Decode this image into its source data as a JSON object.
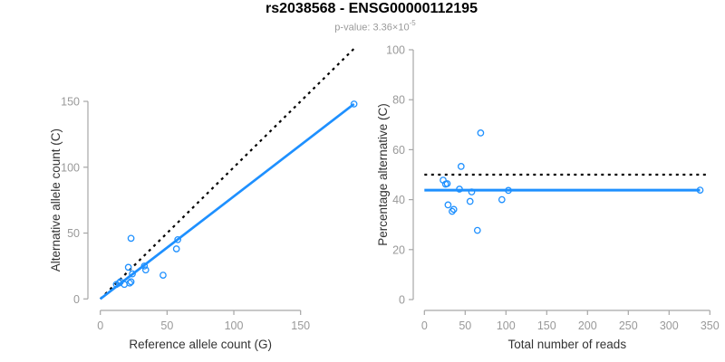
{
  "header": {
    "title": "rs2038568 - ENSG00000112195",
    "pvalue_text": "p-value: 3.36×10",
    "pvalue_exponent": "-5"
  },
  "colors": {
    "point_blue": "#1E90FF",
    "fit_line_blue": "#1E90FF",
    "dashed_black": "#000000",
    "tick_text_gray": "#999999",
    "axis_gray": "#A6A6A6",
    "axis_title_color": "#333333",
    "title_color": "#000000",
    "subtitle_gray": "#9A9A9A",
    "background": "#FFFFFF"
  },
  "chart_data": [
    {
      "type": "scatter",
      "panel": "left",
      "title": "",
      "xlabel": "Reference allele count (G)",
      "ylabel": "Alternative allele count (C)",
      "xticks": [
        0,
        50,
        100,
        150
      ],
      "yticks": [
        0,
        50,
        100,
        150
      ],
      "xlim": [
        0,
        193
      ],
      "ylim": [
        0,
        190
      ],
      "grid": false,
      "legend": null,
      "points": [
        [
          12,
          11
        ],
        [
          14,
          12
        ],
        [
          15,
          13
        ],
        [
          18,
          11
        ],
        [
          22,
          12
        ],
        [
          23,
          13
        ],
        [
          21,
          24
        ],
        [
          24,
          19
        ],
        [
          33,
          25
        ],
        [
          34,
          22
        ],
        [
          23,
          46
        ],
        [
          47,
          18
        ],
        [
          57,
          38
        ],
        [
          58,
          45
        ],
        [
          190,
          148
        ]
      ],
      "lines": [
        {
          "name": "identity-line",
          "style": "dotted",
          "color_key": "dashed_black",
          "x1": 0,
          "y1": 0,
          "x2": 190,
          "y2": 190,
          "width": 2.2
        },
        {
          "name": "fit-line",
          "style": "solid",
          "color_key": "fit_line_blue",
          "x1": 0,
          "y1": 0,
          "x2": 190,
          "y2": 148,
          "width": 2.7
        }
      ]
    },
    {
      "type": "scatter",
      "panel": "right",
      "title": "",
      "xlabel": "Total number of reads",
      "ylabel": "Percentage alternative (C)",
      "xticks": [
        0,
        50,
        100,
        150,
        200,
        250,
        300,
        350
      ],
      "yticks": [
        0,
        20,
        40,
        60,
        80,
        100
      ],
      "xlim": [
        0,
        350
      ],
      "ylim": [
        0,
        100
      ],
      "grid": false,
      "legend": null,
      "points": [
        [
          23,
          47.8
        ],
        [
          26,
          46.2
        ],
        [
          28,
          46.4
        ],
        [
          29,
          37.9
        ],
        [
          34,
          35.3
        ],
        [
          36,
          36.1
        ],
        [
          45,
          53.3
        ],
        [
          43,
          44.2
        ],
        [
          58,
          43.1
        ],
        [
          56,
          39.3
        ],
        [
          69,
          66.7
        ],
        [
          65,
          27.7
        ],
        [
          95,
          40.0
        ],
        [
          103,
          43.7
        ],
        [
          338,
          43.8
        ]
      ],
      "lines": [
        {
          "name": "null-line",
          "style": "dotted",
          "color_key": "dashed_black",
          "x1": 0,
          "y1": 50,
          "x2": 350,
          "y2": 50,
          "width": 2.2
        },
        {
          "name": "fit-line",
          "style": "solid",
          "color_key": "fit_line_blue",
          "x1": 0,
          "y1": 43.8,
          "x2": 338,
          "y2": 43.8,
          "width": 3
        }
      ]
    }
  ]
}
